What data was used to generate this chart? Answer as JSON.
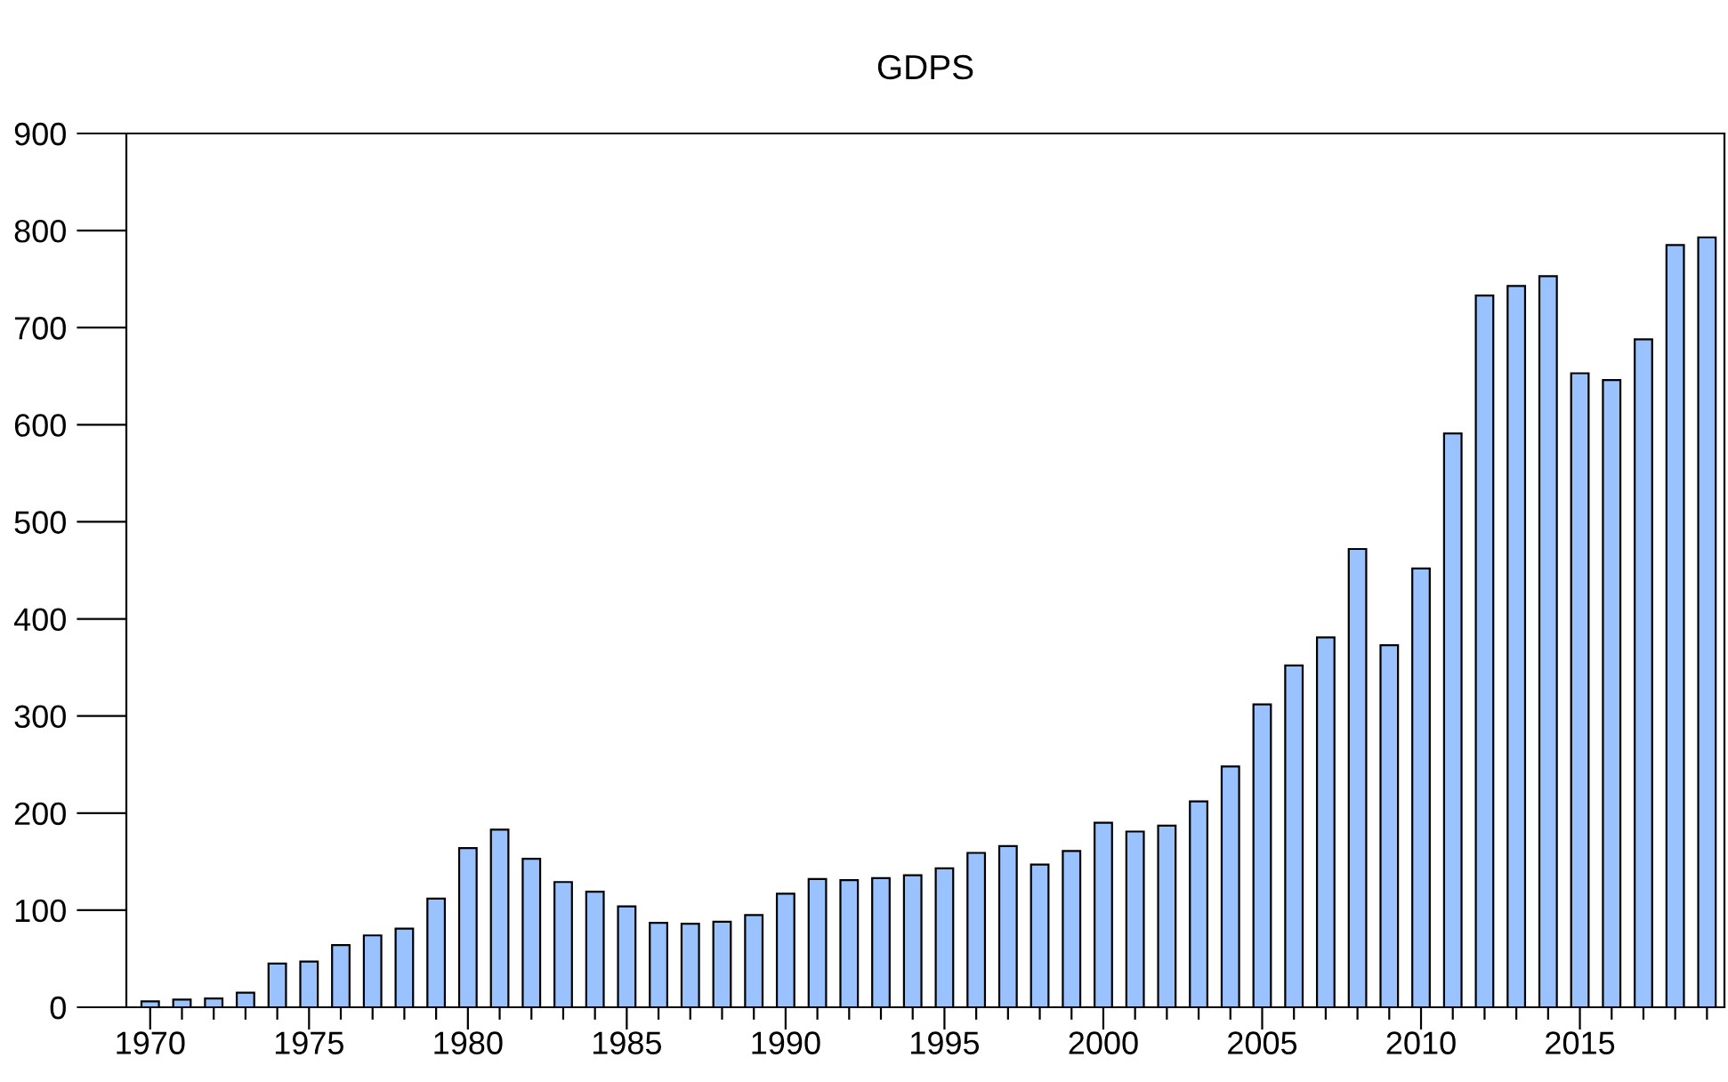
{
  "chart_data": {
    "type": "bar",
    "title": "GDPS",
    "x": [
      1970,
      1971,
      1972,
      1973,
      1974,
      1975,
      1976,
      1977,
      1978,
      1979,
      1980,
      1981,
      1982,
      1983,
      1984,
      1985,
      1986,
      1987,
      1988,
      1989,
      1990,
      1991,
      1992,
      1993,
      1994,
      1995,
      1996,
      1997,
      1998,
      1999,
      2000,
      2001,
      2002,
      2003,
      2004,
      2005,
      2006,
      2007,
      2008,
      2009,
      2010,
      2011,
      2012,
      2013,
      2014,
      2015,
      2016,
      2017,
      2018,
      2019
    ],
    "values": [
      6,
      8,
      9,
      15,
      45,
      47,
      64,
      74,
      81,
      112,
      164,
      183,
      153,
      129,
      119,
      104,
      87,
      86,
      88,
      95,
      117,
      132,
      131,
      133,
      136,
      143,
      159,
      166,
      147,
      161,
      190,
      181,
      187,
      212,
      248,
      312,
      352,
      381,
      472,
      373,
      452,
      591,
      733,
      743,
      753,
      653,
      646,
      688,
      785,
      793
    ],
    "color": "#99c2ff",
    "xlim": [
      1969.25,
      2019.55
    ],
    "xticks": [
      1970,
      {
        "value": 1971,
        "label": null
      },
      {
        "value": 1972,
        "label": null
      },
      {
        "value": 1973,
        "label": null
      },
      {
        "value": 1974,
        "label": null
      },
      1975,
      {
        "value": 1976,
        "label": null
      },
      {
        "value": 1977,
        "label": null
      },
      {
        "value": 1978,
        "label": null
      },
      {
        "value": 1979,
        "label": null
      },
      1980,
      {
        "value": 1981,
        "label": null
      },
      {
        "value": 1982,
        "label": null
      },
      {
        "value": 1983,
        "label": null
      },
      {
        "value": 1984,
        "label": null
      },
      1985,
      {
        "value": 1986,
        "label": null
      },
      {
        "value": 1987,
        "label": null
      },
      {
        "value": 1988,
        "label": null
      },
      {
        "value": 1989,
        "label": null
      },
      1990,
      {
        "value": 1991,
        "label": null
      },
      {
        "value": 1992,
        "label": null
      },
      {
        "value": 1993,
        "label": null
      },
      {
        "value": 1994,
        "label": null
      },
      1995,
      {
        "value": 1996,
        "label": null
      },
      {
        "value": 1997,
        "label": null
      },
      {
        "value": 1998,
        "label": null
      },
      {
        "value": 1999,
        "label": null
      },
      2000,
      {
        "value": 2001,
        "label": null
      },
      {
        "value": 2002,
        "label": null
      },
      {
        "value": 2003,
        "label": null
      },
      {
        "value": 2004,
        "label": null
      },
      2005,
      {
        "value": 2006,
        "label": null
      },
      {
        "value": 2007,
        "label": null
      },
      {
        "value": 2008,
        "label": null
      },
      {
        "value": 2009,
        "label": null
      },
      2010,
      {
        "value": 2011,
        "label": null
      },
      {
        "value": 2012,
        "label": null
      },
      {
        "value": 2013,
        "label": null
      },
      {
        "value": 2014,
        "label": null
      },
      2015,
      {
        "value": 2016,
        "label": null
      },
      {
        "value": 2017,
        "label": null
      },
      {
        "value": 2018,
        "label": null
      },
      {
        "value": 2019,
        "label": null
      }
    ],
    "ylim": [
      0,
      900
    ],
    "yticks": [
      0,
      100,
      200,
      300,
      400,
      500,
      600,
      700,
      800,
      900
    ],
    "grid": false,
    "legend": false
  }
}
